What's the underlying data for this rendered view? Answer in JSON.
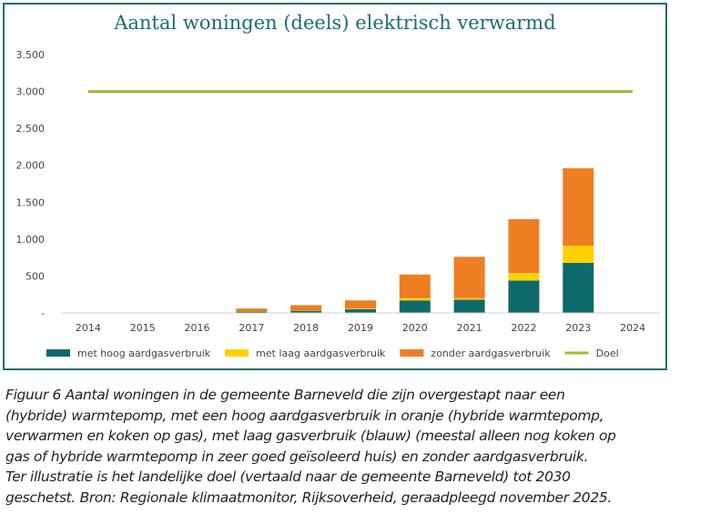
{
  "chart_data": {
    "type": "bar",
    "stacked": true,
    "title": "Aantal woningen (deels) elektrisch verwarmd",
    "xlabel": "",
    "ylabel": "",
    "categories": [
      "2014",
      "2015",
      "2016",
      "2017",
      "2018",
      "2019",
      "2020",
      "2021",
      "2022",
      "2023",
      "2024"
    ],
    "ylim": [
      0,
      3500
    ],
    "yticks": [
      0,
      500,
      1000,
      1500,
      2000,
      2500,
      3000,
      3500
    ],
    "ytick_labels": [
      "-",
      "500",
      "1.000",
      "1.500",
      "2.000",
      "2.500",
      "3.000",
      "3.500"
    ],
    "grid": false,
    "legend_position": "bottom",
    "series": [
      {
        "name": "met hoog aardgasverbruik",
        "color": "#0f6b6b",
        "values": [
          null,
          null,
          null,
          20,
          30,
          50,
          170,
          180,
          440,
          680,
          null
        ]
      },
      {
        "name": "met laag aardgasverbruik",
        "color": "#ffd100",
        "values": [
          null,
          null,
          null,
          5,
          5,
          10,
          30,
          20,
          100,
          230,
          null
        ]
      },
      {
        "name": "zonder aardgasverbruik",
        "color": "#ef7d22",
        "values": [
          null,
          null,
          null,
          35,
          70,
          110,
          320,
          560,
          730,
          1050,
          null
        ]
      }
    ],
    "target": {
      "name": "Doel",
      "color": "#a8b630",
      "values": [
        3000,
        3000,
        3000,
        3000,
        3000,
        3000,
        3000,
        3000,
        3000,
        3000,
        3000
      ]
    }
  },
  "caption_lines": [
    "Figuur 6 Aantal woningen in de gemeente Barneveld die zijn overgestapt naar een",
    "(hybride) warmtepomp, met een hoog aardgasverbruik in oranje (hybride warmtepomp,",
    "verwarmen en koken op gas), met laag gasverbruik (blauw) (meestal alleen nog koken op",
    "gas of hybride warmtepomp in zeer goed geïsoleerd huis) en zonder aardgasverbruik.",
    "Ter illustratie is het landelijke doel (vertaald naar de gemeente Barneveld) tot 2030",
    "geschetst. Bron: Regionale klimaatmonitor, Rijksoverheid, geraadpleegd november 2025."
  ]
}
